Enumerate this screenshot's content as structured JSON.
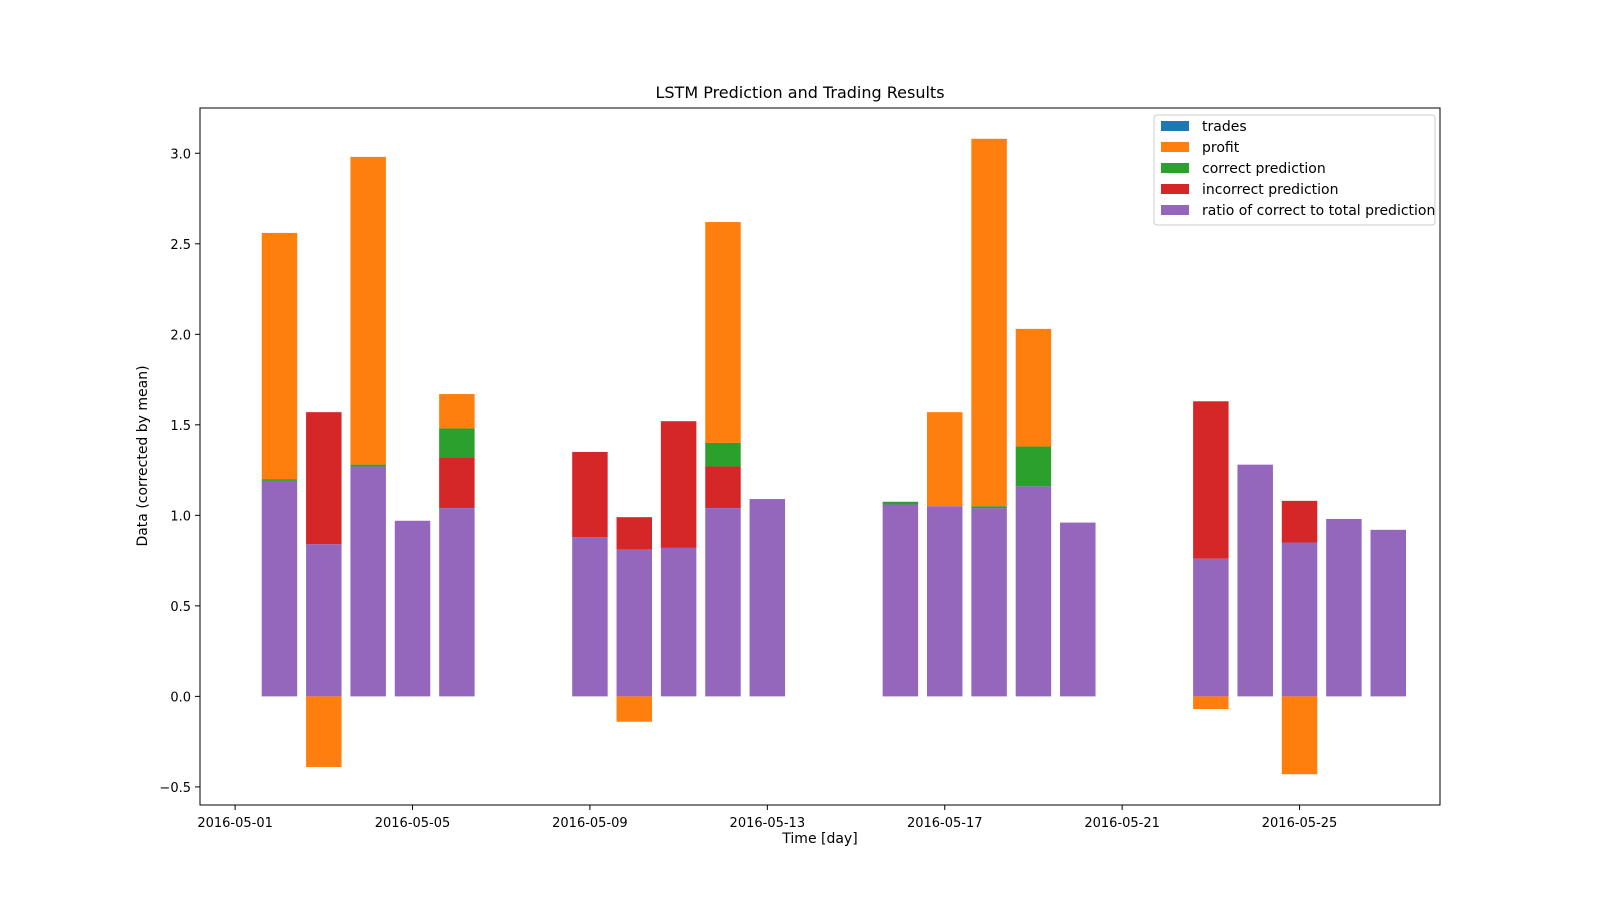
{
  "chart_data": {
    "type": "bar",
    "stacked": true,
    "title": "LSTM Prediction and Trading Results",
    "xlabel": "Time [day]",
    "ylabel": "Data (corrected by mean)",
    "x_tick_labels": [
      "2016-05-01",
      "2016-05-05",
      "2016-05-09",
      "2016-05-13",
      "2016-05-17",
      "2016-05-21",
      "2016-05-25"
    ],
    "y_ticks": [
      -0.5,
      0.0,
      0.5,
      1.0,
      1.5,
      2.0,
      2.5,
      3.0
    ],
    "y_tick_labels": [
      "−0.5",
      "0.0",
      "0.5",
      "1.0",
      "1.5",
      "2.0",
      "2.5",
      "3.0"
    ],
    "ylim": [
      -0.6,
      3.25
    ],
    "xlim": [
      "2016-04-30T05:00",
      "2016-05-28T04:00"
    ],
    "legend_position": "upper right",
    "grid": false,
    "categories": [
      "2016-05-02",
      "2016-05-03",
      "2016-05-04",
      "2016-05-05",
      "2016-05-06",
      "2016-05-09",
      "2016-05-10",
      "2016-05-11",
      "2016-05-12",
      "2016-05-13",
      "2016-05-16",
      "2016-05-17",
      "2016-05-18",
      "2016-05-19",
      "2016-05-20",
      "2016-05-23",
      "2016-05-24",
      "2016-05-25",
      "2016-05-26",
      "2016-05-27"
    ],
    "series": [
      {
        "name": "trades",
        "color": "#1f77b4",
        "values": [
          0,
          0,
          0,
          0,
          0,
          0,
          0,
          0,
          0,
          0,
          0,
          0,
          0,
          0,
          0,
          0,
          0,
          0,
          0,
          0
        ]
      },
      {
        "name": "profit",
        "color": "#ff7f0e",
        "bars": [
          {
            "bottom": 1.2,
            "top": 2.56
          },
          {
            "bottom": -0.39,
            "top": 0
          },
          {
            "bottom": 1.28,
            "top": 2.98
          },
          null,
          {
            "bottom": 1.48,
            "top": 1.67
          },
          null,
          {
            "bottom": -0.14,
            "top": 0
          },
          null,
          {
            "bottom": 1.4,
            "top": 2.62
          },
          null,
          null,
          {
            "bottom": 1.05,
            "top": 1.57
          },
          {
            "bottom": 1.05,
            "top": 3.08
          },
          {
            "bottom": 1.38,
            "top": 2.03
          },
          null,
          {
            "bottom": -0.07,
            "top": 0
          },
          null,
          {
            "bottom": -0.43,
            "top": 0
          },
          null,
          null
        ]
      },
      {
        "name": "correct prediction",
        "color": "#2ca02c",
        "bars": [
          {
            "bottom": 1.19,
            "top": 1.2
          },
          null,
          {
            "bottom": 1.27,
            "top": 1.28
          },
          null,
          {
            "bottom": 1.32,
            "top": 1.48
          },
          null,
          null,
          null,
          {
            "bottom": 1.27,
            "top": 1.4
          },
          null,
          {
            "bottom": 1.06,
            "top": 1.075
          },
          null,
          {
            "bottom": 1.04,
            "top": 1.05
          },
          {
            "bottom": 1.16,
            "top": 1.38
          },
          null,
          null,
          null,
          null,
          null,
          null
        ]
      },
      {
        "name": "incorrect prediction",
        "color": "#d62728",
        "bars": [
          null,
          {
            "bottom": 0.84,
            "top": 1.57
          },
          null,
          null,
          {
            "bottom": 1.04,
            "top": 1.32
          },
          {
            "bottom": 0.88,
            "top": 1.35
          },
          {
            "bottom": 0.81,
            "top": 0.99
          },
          {
            "bottom": 0.82,
            "top": 1.52
          },
          {
            "bottom": 1.04,
            "top": 1.27
          },
          null,
          null,
          null,
          null,
          null,
          null,
          {
            "bottom": 0.76,
            "top": 1.63
          },
          null,
          {
            "bottom": 0.85,
            "top": 1.08
          },
          null,
          null
        ]
      },
      {
        "name": "ratio of correct to total prediction",
        "color": "#9467bd",
        "values": [
          1.19,
          0.84,
          1.27,
          0.97,
          1.04,
          0.88,
          0.81,
          0.82,
          1.04,
          1.09,
          1.06,
          1.05,
          1.04,
          1.16,
          0.96,
          0.76,
          1.28,
          0.85,
          0.98,
          0.92
        ]
      }
    ]
  }
}
